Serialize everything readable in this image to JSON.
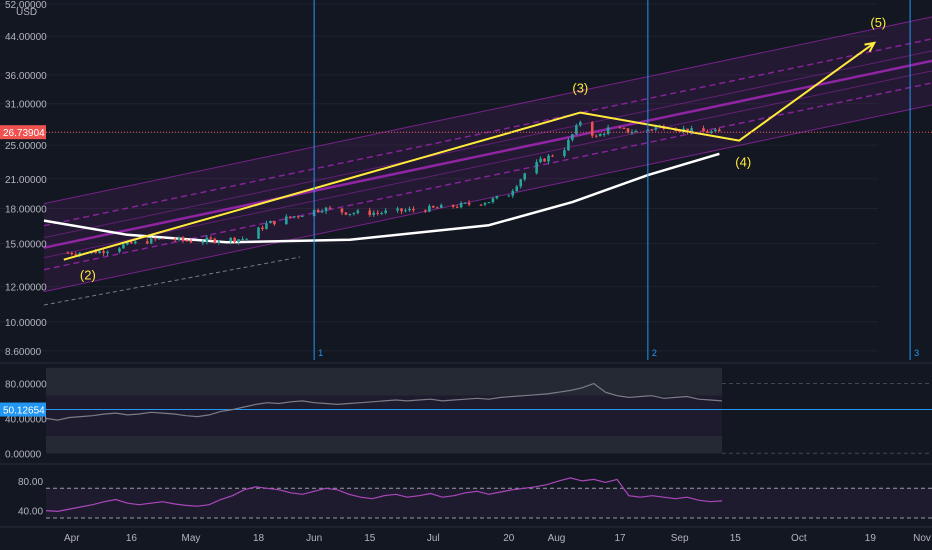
{
  "currency_label": "USD",
  "chart_data": [
    {
      "type": "candlestick",
      "panel": "price",
      "y_scale": "log",
      "y_ticks": [
        "52.00000",
        "44.00000",
        "36.00000",
        "31.00000",
        "26.73904",
        "25.00000",
        "21.00000",
        "18.00000",
        "15.00000",
        "12.00000",
        "10.00000",
        "8.60000"
      ],
      "y_tick_values": [
        52,
        44,
        36,
        31,
        26.73904,
        25,
        21,
        18,
        15,
        12,
        10,
        8.6
      ],
      "ylim": [
        8.2,
        52
      ],
      "last_price": 26.73904,
      "last_price_label": "26.73904",
      "x_ticks": [
        "Apr",
        "16",
        "May",
        "18",
        "Jun",
        "15",
        "Jul",
        "20",
        "Aug",
        "17",
        "Sep",
        "15",
        "Oct",
        "19",
        "Nov"
      ],
      "vertical_markers": [
        {
          "label": "1",
          "date": "2020-06-01"
        },
        {
          "label": "2",
          "date": "2020-08-24"
        },
        {
          "label": "3",
          "date": "2020-10-29"
        }
      ],
      "candle_anchors": [
        {
          "date": "2020-03-31",
          "close": 14.3
        },
        {
          "date": "2020-04-08",
          "close": 14.4
        },
        {
          "date": "2020-04-16",
          "close": 15.0
        },
        {
          "date": "2020-04-24",
          "close": 15.4
        },
        {
          "date": "2020-05-01",
          "close": 15.2
        },
        {
          "date": "2020-05-08",
          "close": 15.3
        },
        {
          "date": "2020-05-15",
          "close": 15.4
        },
        {
          "date": "2020-05-20",
          "close": 16.6
        },
        {
          "date": "2020-05-27",
          "close": 17.3
        },
        {
          "date": "2020-06-03",
          "close": 18.0
        },
        {
          "date": "2020-06-10",
          "close": 17.6
        },
        {
          "date": "2020-06-17",
          "close": 17.6
        },
        {
          "date": "2020-06-24",
          "close": 17.8
        },
        {
          "date": "2020-07-01",
          "close": 18.0
        },
        {
          "date": "2020-07-08",
          "close": 18.3
        },
        {
          "date": "2020-07-15",
          "close": 18.7
        },
        {
          "date": "2020-07-20",
          "close": 19.4
        },
        {
          "date": "2020-07-24",
          "close": 21.6
        },
        {
          "date": "2020-07-28",
          "close": 23.0
        },
        {
          "date": "2020-08-03",
          "close": 24.6
        },
        {
          "date": "2020-08-07",
          "close": 28.3
        },
        {
          "date": "2020-08-11",
          "close": 26.0
        },
        {
          "date": "2020-08-14",
          "close": 27.2
        },
        {
          "date": "2020-08-21",
          "close": 26.8
        },
        {
          "date": "2020-08-28",
          "close": 27.6
        },
        {
          "date": "2020-09-04",
          "close": 26.9
        },
        {
          "date": "2020-09-11",
          "close": 26.7
        }
      ],
      "annotations": [
        {
          "label": "(2)",
          "date": "2020-03-30",
          "value": 13.8
        },
        {
          "label": "(3)",
          "date": "2020-08-07",
          "value": 29.6
        },
        {
          "label": "(4)",
          "date": "2020-09-16",
          "value": 25.6
        },
        {
          "label": "(5)",
          "date": "2020-10-20",
          "value": 42.5
        }
      ],
      "wave_path": [
        {
          "date": "2020-03-30",
          "value": 13.8
        },
        {
          "date": "2020-08-07",
          "value": 29.6
        },
        {
          "date": "2020-09-16",
          "value": 25.6
        },
        {
          "date": "2020-10-20",
          "value": 42.5
        }
      ]
    },
    {
      "type": "line",
      "panel": "indicator-1",
      "y_ticks": [
        "80.00000",
        "40.00000",
        "0.00000"
      ],
      "y_tick_values": [
        80,
        40,
        0
      ],
      "ylim": [
        -10,
        100
      ],
      "current_value": 50.12654,
      "current_value_label": "50.12654",
      "bands": [
        [
          66,
          98
        ],
        [
          0,
          20
        ]
      ],
      "series": [
        {
          "values": [
            40,
            38,
            41,
            42,
            43,
            45,
            46,
            44,
            45,
            47,
            46,
            45,
            43,
            42,
            44,
            48,
            50,
            53,
            56,
            58,
            57,
            59,
            60,
            58,
            57,
            56,
            57,
            58,
            59,
            60,
            61,
            60,
            61,
            62,
            60,
            61,
            62,
            63,
            62,
            64,
            65,
            66,
            67,
            68,
            70,
            72,
            75,
            80,
            70,
            66,
            64,
            65,
            66,
            63,
            64,
            65,
            62,
            61,
            60
          ]
        }
      ]
    },
    {
      "type": "line",
      "panel": "indicator-2",
      "y_ticks": [
        "80.00",
        "40.00"
      ],
      "y_tick_values": [
        80,
        40
      ],
      "ylim": [
        22,
        100
      ],
      "series": [
        {
          "values": [
            40,
            39,
            42,
            45,
            48,
            52,
            55,
            50,
            48,
            50,
            52,
            49,
            47,
            46,
            48,
            55,
            60,
            68,
            72,
            70,
            68,
            64,
            62,
            66,
            70,
            68,
            62,
            58,
            56,
            60,
            62,
            58,
            60,
            63,
            58,
            60,
            64,
            66,
            62,
            65,
            68,
            70,
            72,
            75,
            80,
            84,
            80,
            82,
            78,
            82,
            60,
            58,
            60,
            58,
            56,
            58,
            54,
            52,
            53
          ]
        }
      ]
    }
  ],
  "colors": {
    "background": "#131722",
    "grid": "#1e222d",
    "candle_up": "#26a69a",
    "candle_down": "#ef5350",
    "channel": "#9c27b0",
    "wave": "#ffeb3b",
    "curve": "#ffffff",
    "marker": "#2196f3",
    "indicator_line": "#7a7d85",
    "rsi_line": "#ab47bc"
  }
}
